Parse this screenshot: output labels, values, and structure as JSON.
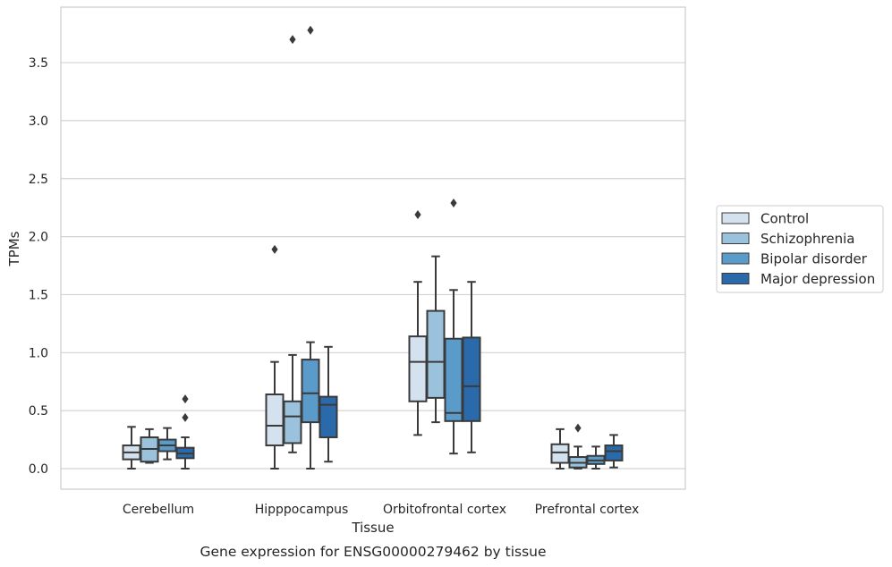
{
  "chart_data": {
    "type": "box",
    "xlabel": "Tissue",
    "ylabel": "TPMs",
    "caption": "Gene expression for ENSG00000279462 by tissue",
    "ylim": [
      -0.18,
      3.98
    ],
    "yticks": [
      0.0,
      0.5,
      1.0,
      1.5,
      2.0,
      2.5,
      3.0,
      3.5
    ],
    "ytick_labels": [
      "0.0",
      "0.5",
      "1.0",
      "1.5",
      "2.0",
      "2.5",
      "3.0",
      "3.5"
    ],
    "grid": "horizontal",
    "legend_position": "right",
    "categories": [
      "Cerebellum",
      "Hipppocampus",
      "Orbitofrontal cortex",
      "Prefrontal cortex"
    ],
    "series": [
      {
        "name": "Control",
        "color": "#d4e2f0",
        "boxes": [
          {
            "whisker_low": 0.0,
            "q1": 0.08,
            "median": 0.14,
            "q3": 0.2,
            "whisker_high": 0.36,
            "outliers": []
          },
          {
            "whisker_low": 0.0,
            "q1": 0.2,
            "median": 0.37,
            "q3": 0.64,
            "whisker_high": 0.92,
            "outliers": [
              1.89
            ]
          },
          {
            "whisker_low": 0.29,
            "q1": 0.58,
            "median": 0.92,
            "q3": 1.14,
            "whisker_high": 1.61,
            "outliers": [
              2.19
            ]
          },
          {
            "whisker_low": 0.0,
            "q1": 0.05,
            "median": 0.14,
            "q3": 0.21,
            "whisker_high": 0.34,
            "outliers": []
          }
        ]
      },
      {
        "name": "Schizophrenia",
        "color": "#9ac2dc",
        "boxes": [
          {
            "whisker_low": 0.05,
            "q1": 0.06,
            "median": 0.17,
            "q3": 0.27,
            "whisker_high": 0.34,
            "outliers": []
          },
          {
            "whisker_low": 0.14,
            "q1": 0.22,
            "median": 0.45,
            "q3": 0.58,
            "whisker_high": 0.98,
            "outliers": [
              3.7
            ]
          },
          {
            "whisker_low": 0.4,
            "q1": 0.61,
            "median": 0.92,
            "q3": 1.36,
            "whisker_high": 1.83,
            "outliers": []
          },
          {
            "whisker_low": 0.0,
            "q1": 0.01,
            "median": 0.05,
            "q3": 0.1,
            "whisker_high": 0.19,
            "outliers": [
              0.35
            ]
          }
        ]
      },
      {
        "name": "Bipolar disorder",
        "color": "#5b9bc9",
        "boxes": [
          {
            "whisker_low": 0.08,
            "q1": 0.15,
            "median": 0.2,
            "q3": 0.25,
            "whisker_high": 0.35,
            "outliers": []
          },
          {
            "whisker_low": 0.0,
            "q1": 0.4,
            "median": 0.65,
            "q3": 0.94,
            "whisker_high": 1.09,
            "outliers": [
              3.78
            ]
          },
          {
            "whisker_low": 0.13,
            "q1": 0.41,
            "median": 0.48,
            "q3": 1.12,
            "whisker_high": 1.54,
            "outliers": [
              2.29
            ]
          },
          {
            "whisker_low": 0.0,
            "q1": 0.04,
            "median": 0.07,
            "q3": 0.11,
            "whisker_high": 0.19,
            "outliers": []
          }
        ]
      },
      {
        "name": "Major depression",
        "color": "#2a6aaa",
        "boxes": [
          {
            "whisker_low": 0.0,
            "q1": 0.09,
            "median": 0.13,
            "q3": 0.18,
            "whisker_high": 0.27,
            "outliers": [
              0.44,
              0.6
            ]
          },
          {
            "whisker_low": 0.06,
            "q1": 0.27,
            "median": 0.55,
            "q3": 0.62,
            "whisker_high": 1.05,
            "outliers": []
          },
          {
            "whisker_low": 0.14,
            "q1": 0.41,
            "median": 0.71,
            "q3": 1.13,
            "whisker_high": 1.61,
            "outliers": []
          },
          {
            "whisker_low": 0.01,
            "q1": 0.07,
            "median": 0.15,
            "q3": 0.2,
            "whisker_high": 0.29,
            "outliers": []
          }
        ]
      }
    ]
  }
}
